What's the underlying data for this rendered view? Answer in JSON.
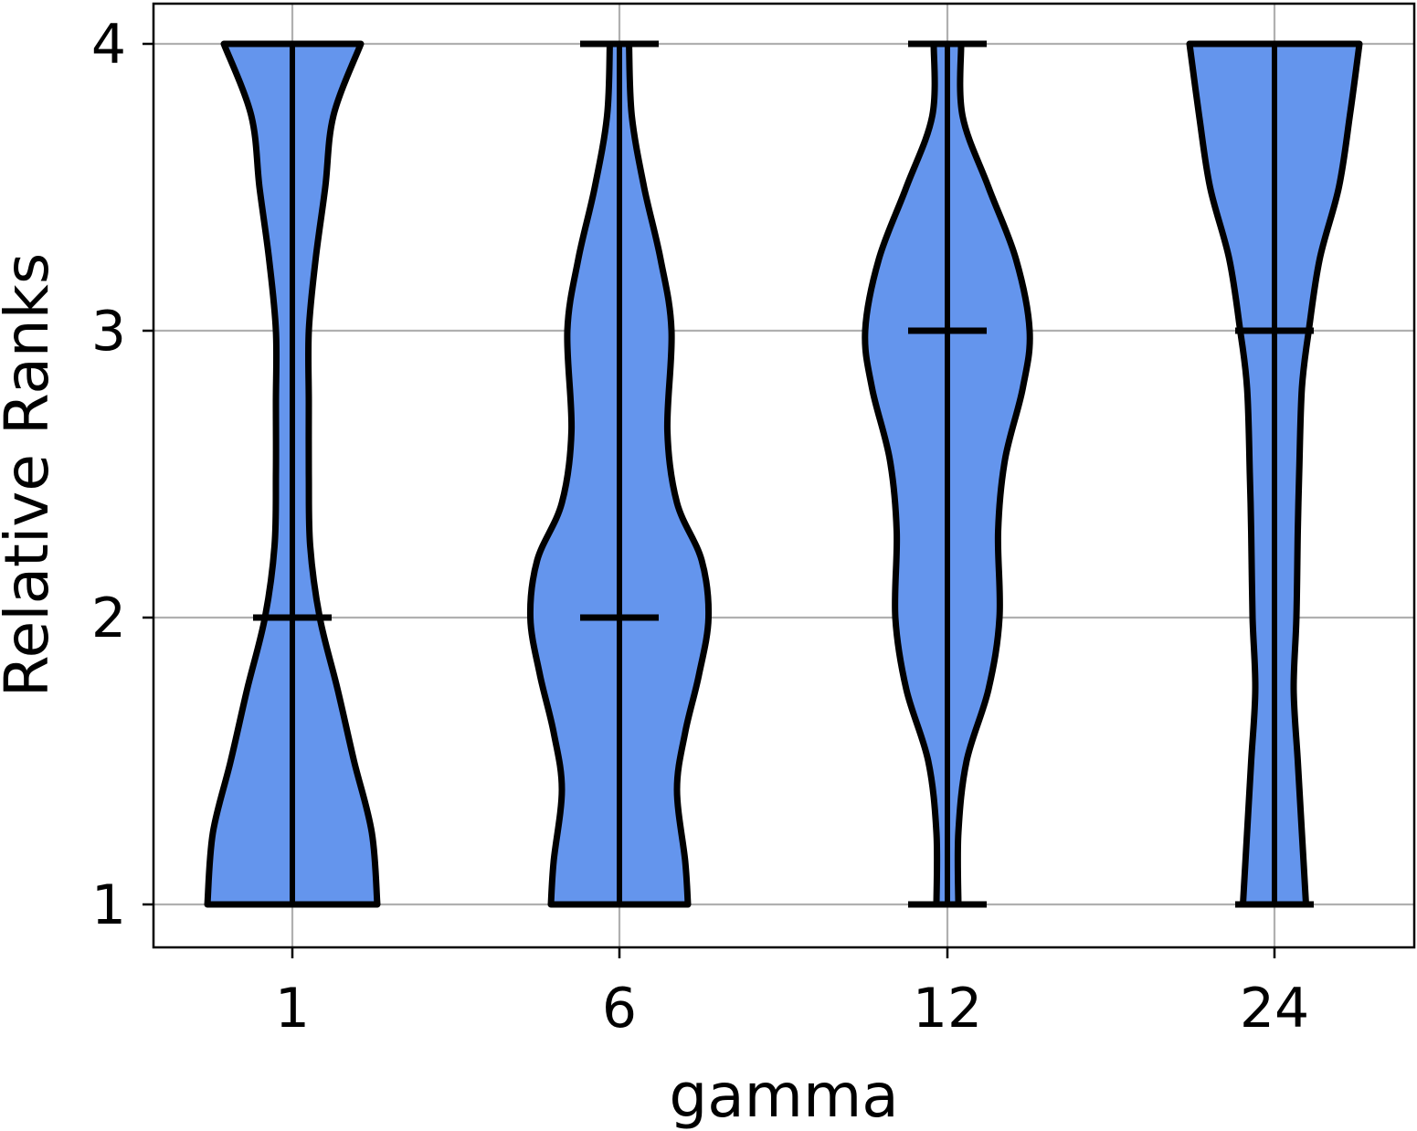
{
  "chart_data": {
    "type": "violin",
    "title": "",
    "xlabel": "gamma",
    "ylabel": "Relative Ranks",
    "categories": [
      "1",
      "6",
      "12",
      "24"
    ],
    "ylim": [
      0.85,
      4.15
    ],
    "yticks": [
      1,
      2,
      3,
      4
    ],
    "grid": true,
    "colors": {
      "fill": "#6495ED",
      "edge": "#000000",
      "grid": "#b0b0b0"
    },
    "series": [
      {
        "min": 1,
        "max": 4,
        "median": 2,
        "density": [
          [
            1,
            0.62
          ],
          [
            1.25,
            0.58
          ],
          [
            1.5,
            0.45
          ],
          [
            1.75,
            0.33
          ],
          [
            2,
            0.2
          ],
          [
            2.25,
            0.13
          ],
          [
            2.5,
            0.12
          ],
          [
            2.75,
            0.12
          ],
          [
            3,
            0.12
          ],
          [
            3.25,
            0.17
          ],
          [
            3.5,
            0.24
          ],
          [
            3.75,
            0.3
          ],
          [
            4,
            0.5
          ]
        ]
      },
      {
        "min": 1,
        "max": 4,
        "median": 2,
        "density": [
          [
            1,
            0.5
          ],
          [
            1.15,
            0.48
          ],
          [
            1.4,
            0.42
          ],
          [
            1.6,
            0.48
          ],
          [
            1.8,
            0.58
          ],
          [
            2,
            0.65
          ],
          [
            2.2,
            0.6
          ],
          [
            2.4,
            0.42
          ],
          [
            2.65,
            0.35
          ],
          [
            3,
            0.38
          ],
          [
            3.25,
            0.3
          ],
          [
            3.5,
            0.18
          ],
          [
            3.75,
            0.09
          ],
          [
            4,
            0.07
          ]
        ]
      },
      {
        "min": 1,
        "max": 4,
        "median": 3,
        "density": [
          [
            1,
            0.08
          ],
          [
            1.25,
            0.08
          ],
          [
            1.5,
            0.14
          ],
          [
            1.75,
            0.3
          ],
          [
            2,
            0.38
          ],
          [
            2.3,
            0.37
          ],
          [
            2.55,
            0.42
          ],
          [
            2.8,
            0.55
          ],
          [
            3,
            0.6
          ],
          [
            3.25,
            0.5
          ],
          [
            3.5,
            0.3
          ],
          [
            3.75,
            0.11
          ],
          [
            4,
            0.1
          ]
        ]
      },
      {
        "min": 1,
        "max": 4,
        "median": 3,
        "density": [
          [
            1,
            0.23
          ],
          [
            1.25,
            0.2
          ],
          [
            1.5,
            0.17
          ],
          [
            1.75,
            0.14
          ],
          [
            2,
            0.16
          ],
          [
            2.3,
            0.17
          ],
          [
            2.5,
            0.18
          ],
          [
            2.8,
            0.2
          ],
          [
            3,
            0.25
          ],
          [
            3.25,
            0.33
          ],
          [
            3.5,
            0.47
          ],
          [
            3.75,
            0.55
          ],
          [
            4,
            0.62
          ]
        ]
      }
    ]
  }
}
